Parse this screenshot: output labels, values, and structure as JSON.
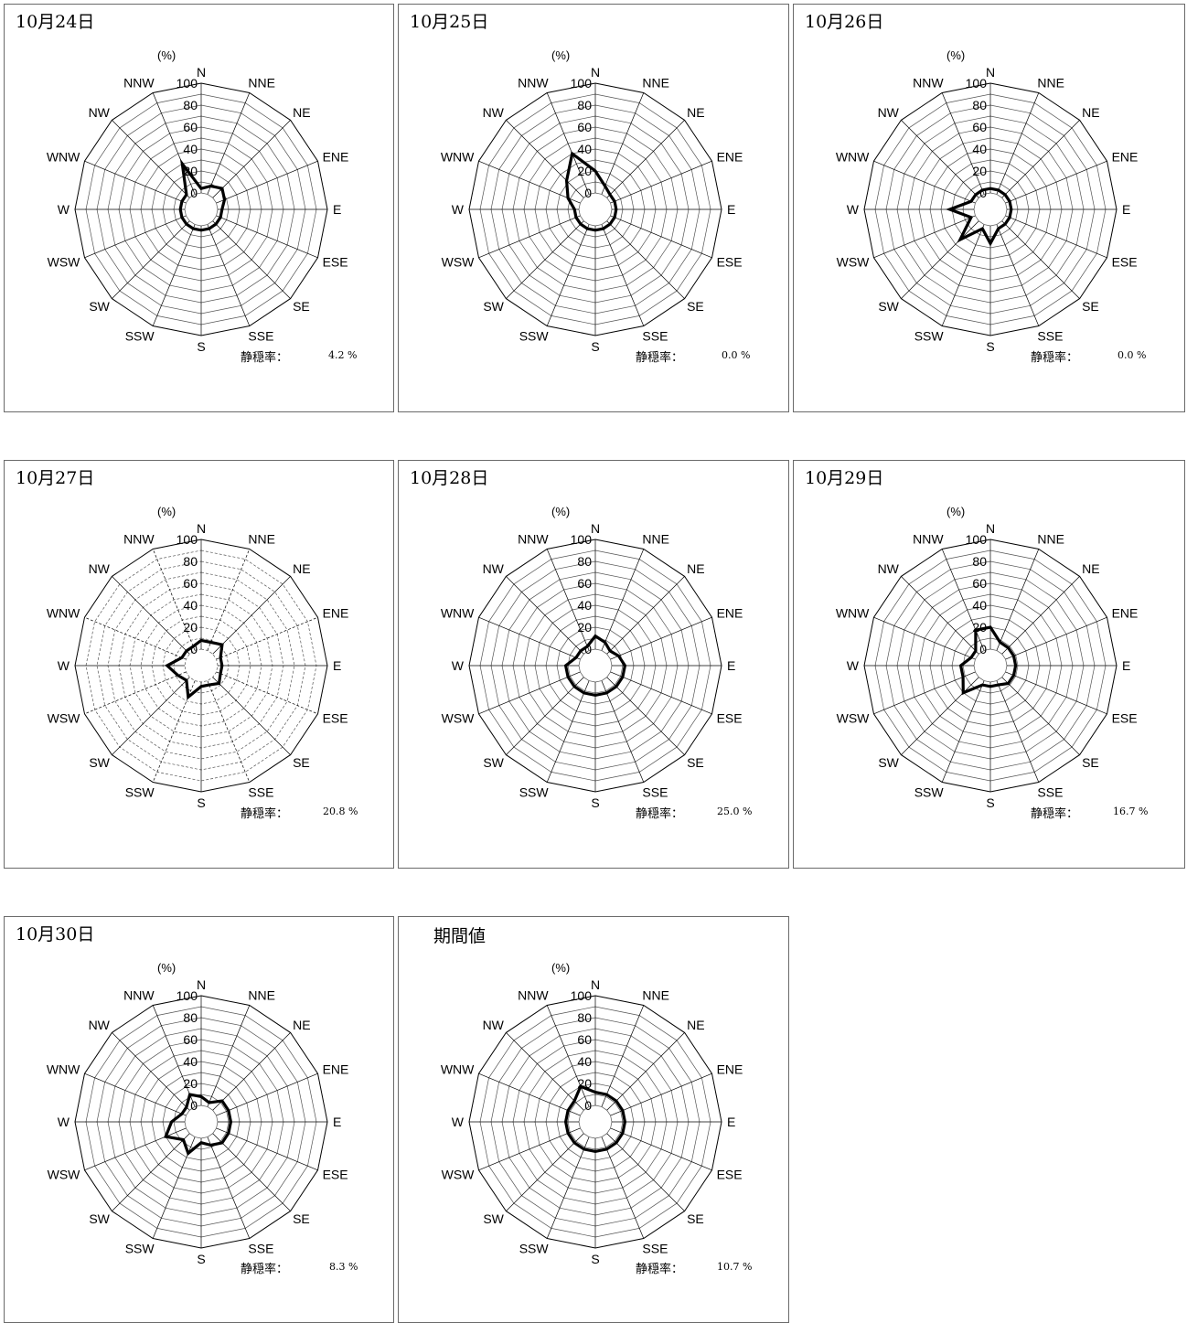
{
  "chart_data": [
    {
      "type": "radar",
      "title": "10月24日",
      "unit": "(%)",
      "rlim": [
        0,
        100
      ],
      "rticks": [
        0,
        20,
        40,
        60,
        80,
        100
      ],
      "directions": [
        "N",
        "NNE",
        "NE",
        "ENE",
        "E",
        "ESE",
        "SE",
        "SSE",
        "S",
        "SSW",
        "SW",
        "WSW",
        "W",
        "WNW",
        "NW",
        "NNW"
      ],
      "values": [
        4,
        8,
        12,
        8,
        4,
        4,
        4,
        4,
        4,
        4,
        4,
        4,
        4,
        4,
        4,
        30
      ],
      "calm_label": "静穏率：",
      "calm_value": "4.2 %"
    },
    {
      "type": "radar",
      "title": "10月25日",
      "unit": "(%)",
      "rlim": [
        0,
        100
      ],
      "rticks": [
        0,
        20,
        40,
        60,
        80,
        100
      ],
      "directions": [
        "N",
        "NNE",
        "NE",
        "ENE",
        "E",
        "ESE",
        "SE",
        "SSE",
        "S",
        "SSW",
        "SW",
        "WSW",
        "W",
        "WNW",
        "NW",
        "NNW"
      ],
      "values": [
        20,
        8,
        4,
        4,
        4,
        4,
        4,
        4,
        4,
        4,
        4,
        4,
        4,
        12,
        22,
        40
      ],
      "calm_label": "静穏率：",
      "calm_value": "0.0 %"
    },
    {
      "type": "radar",
      "title": "10月26日",
      "unit": "(%)",
      "rlim": [
        0,
        100
      ],
      "rticks": [
        0,
        20,
        40,
        60,
        80,
        100
      ],
      "directions": [
        "N",
        "NNE",
        "NE",
        "ENE",
        "E",
        "ESE",
        "SE",
        "SSE",
        "S",
        "SSW",
        "SW",
        "WSW",
        "W",
        "WNW",
        "NW",
        "NNW"
      ],
      "values": [
        4,
        4,
        4,
        4,
        4,
        4,
        4,
        4,
        16,
        4,
        24,
        4,
        22,
        4,
        4,
        4
      ],
      "calm_label": "静穏率：",
      "calm_value": "0.0 %"
    },
    {
      "type": "radar",
      "title": "10月27日",
      "unit": "(%)",
      "rlim": [
        0,
        100
      ],
      "rticks": [
        0,
        20,
        40,
        60,
        80,
        100
      ],
      "directions": [
        "N",
        "NNE",
        "NE",
        "ENE",
        "E",
        "ESE",
        "SE",
        "SSE",
        "S",
        "SSW",
        "SW",
        "WSW",
        "W",
        "WNW",
        "NW",
        "NNW"
      ],
      "values": [
        8,
        8,
        12,
        4,
        4,
        4,
        8,
        4,
        4,
        16,
        4,
        8,
        16,
        4,
        4,
        4
      ],
      "calm_label": "静穏率：",
      "calm_value": "20.8 %"
    },
    {
      "type": "radar",
      "title": "10月28日",
      "unit": "(%)",
      "rlim": [
        0,
        100
      ],
      "rticks": [
        0,
        20,
        40,
        60,
        80,
        100
      ],
      "directions": [
        "N",
        "NNE",
        "NE",
        "ENE",
        "E",
        "ESE",
        "SE",
        "SSE",
        "S",
        "SSW",
        "SW",
        "WSW",
        "W",
        "WNW",
        "NW",
        "NNW"
      ],
      "values": [
        12,
        8,
        4,
        8,
        12,
        12,
        12,
        12,
        12,
        12,
        12,
        12,
        12,
        4,
        4,
        4
      ],
      "calm_label": "静穏率：",
      "calm_value": "25.0 %"
    },
    {
      "type": "radar",
      "title": "10月29日",
      "unit": "(%)",
      "rlim": [
        0,
        100
      ],
      "rticks": [
        0,
        20,
        40,
        60,
        80,
        100
      ],
      "directions": [
        "N",
        "NNE",
        "NE",
        "ENE",
        "E",
        "ESE",
        "SE",
        "SSE",
        "S",
        "SSW",
        "SW",
        "WSW",
        "W",
        "WNW",
        "NW",
        "NNW"
      ],
      "values": [
        20,
        8,
        8,
        8,
        8,
        8,
        8,
        4,
        4,
        4,
        20,
        12,
        12,
        4,
        4,
        20
      ],
      "calm_label": "静穏率：",
      "calm_value": "16.7 %"
    },
    {
      "type": "radar",
      "title": "10月30日",
      "unit": "(%)",
      "rlim": [
        0,
        100
      ],
      "rticks": [
        0,
        20,
        40,
        60,
        80,
        100
      ],
      "directions": [
        "N",
        "NNE",
        "NE",
        "ENE",
        "E",
        "ESE",
        "SE",
        "SSE",
        "S",
        "SSW",
        "SW",
        "WSW",
        "W",
        "WNW",
        "NW",
        "NNW"
      ],
      "values": [
        8,
        4,
        12,
        12,
        12,
        12,
        12,
        8,
        4,
        16,
        8,
        20,
        12,
        4,
        4,
        12
      ],
      "calm_label": "静穏率：",
      "calm_value": "8.3 %"
    },
    {
      "type": "radar",
      "title": "期間値",
      "unit": "(%)",
      "rlim": [
        0,
        100
      ],
      "rticks": [
        0,
        20,
        40,
        60,
        80,
        100
      ],
      "directions": [
        "N",
        "NNE",
        "NE",
        "ENE",
        "E",
        "ESE",
        "SE",
        "SSE",
        "S",
        "SSW",
        "SW",
        "WSW",
        "W",
        "WNW",
        "NW",
        "NNW"
      ],
      "values": [
        12,
        12,
        12,
        12,
        12,
        12,
        12,
        12,
        12,
        12,
        12,
        12,
        12,
        12,
        12,
        20
      ],
      "calm_label": "静穏率：",
      "calm_value": "10.7 %"
    }
  ]
}
